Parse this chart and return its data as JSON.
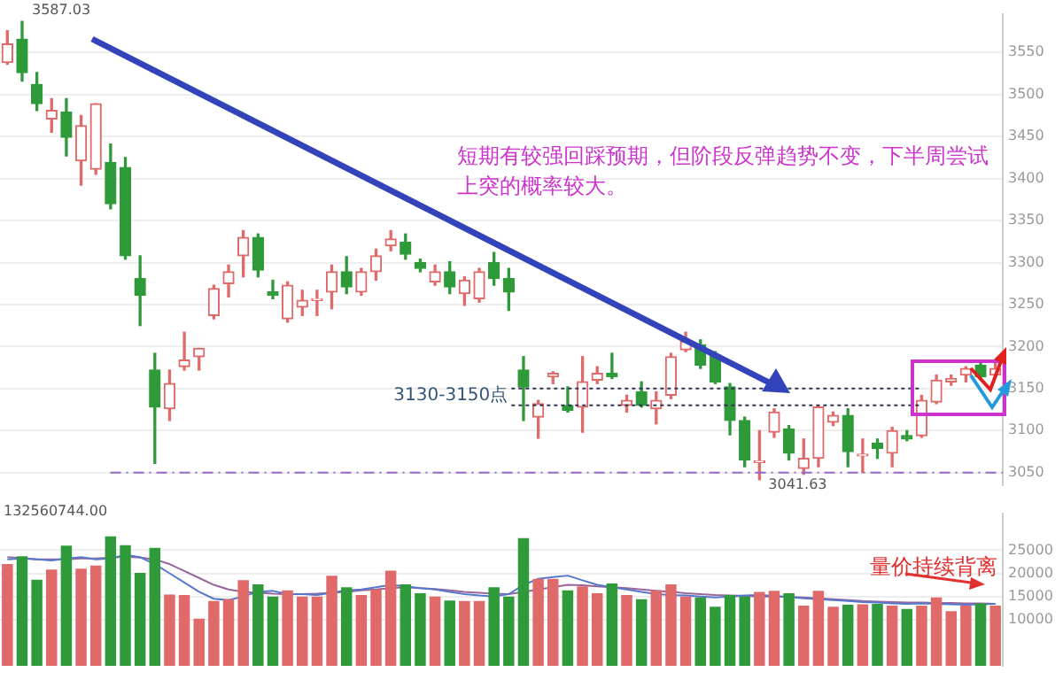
{
  "chart_data": [
    {
      "type": "candlestick",
      "categories": [
        null,
        null,
        null,
        null,
        null,
        null,
        null,
        null,
        null,
        null,
        null,
        null,
        null,
        null,
        null,
        null,
        null,
        null,
        null,
        null,
        null,
        null,
        null,
        null,
        null,
        null,
        null,
        null,
        null,
        null,
        null,
        null,
        null,
        null,
        null,
        null,
        null,
        null,
        null,
        null,
        null,
        null,
        null,
        null,
        null,
        null,
        null,
        null,
        null,
        null,
        null,
        null,
        null,
        null,
        null,
        null,
        null,
        null,
        null,
        null,
        null,
        null,
        null,
        null,
        null,
        null,
        null,
        null
      ],
      "ohlc": [
        [
          3538,
          3576,
          3536,
          3560
        ],
        [
          3566,
          3587.03,
          3516,
          3526
        ],
        [
          3512,
          3526,
          3481,
          3489
        ],
        [
          3471,
          3495,
          3455,
          3481
        ],
        [
          3479,
          3495,
          3427,
          3449
        ],
        [
          3421,
          3475,
          3392,
          3463
        ],
        [
          3411,
          3489,
          3405,
          3489
        ],
        [
          3419,
          3441,
          3364,
          3370
        ],
        [
          3413,
          3425,
          3304,
          3308
        ],
        [
          3281,
          3308,
          3225,
          3261
        ],
        [
          3172,
          3192,
          3061,
          3128
        ],
        [
          3126,
          3172,
          3112,
          3156
        ],
        [
          3176,
          3217,
          3172,
          3184
        ],
        [
          3188,
          3198,
          3172,
          3198
        ],
        [
          3237,
          3273,
          3233,
          3269
        ],
        [
          3275,
          3297,
          3259,
          3289
        ],
        [
          3308,
          3338,
          3283,
          3330
        ],
        [
          3330,
          3334,
          3283,
          3291
        ],
        [
          3265,
          3279,
          3257,
          3261
        ],
        [
          3233,
          3277,
          3229,
          3273
        ],
        [
          3247,
          3267,
          3237,
          3255
        ],
        [
          3255,
          3267,
          3237,
          3257
        ],
        [
          3265,
          3297,
          3245,
          3289
        ],
        [
          3289,
          3307,
          3263,
          3271
        ],
        [
          3265,
          3293,
          3261,
          3289
        ],
        [
          3289,
          3316,
          3279,
          3308
        ],
        [
          3320,
          3338,
          3314,
          3328
        ],
        [
          3324,
          3334,
          3304,
          3310
        ],
        [
          3300,
          3304,
          3289,
          3293
        ],
        [
          3277,
          3297,
          3273,
          3289
        ],
        [
          3289,
          3301,
          3263,
          3271
        ],
        [
          3263,
          3283,
          3249,
          3279
        ],
        [
          3257,
          3293,
          3253,
          3289
        ],
        [
          3300,
          3312,
          3273,
          3281
        ],
        [
          3281,
          3293,
          3243,
          3265
        ],
        [
          3172,
          3188,
          3112,
          3152
        ],
        [
          3116,
          3136,
          3091,
          3132
        ],
        [
          3164,
          3170,
          3156,
          3168
        ],
        [
          3130,
          3152,
          3122,
          3124
        ],
        [
          3128,
          3188,
          3098,
          3158
        ],
        [
          3160,
          3176,
          3156,
          3168
        ],
        [
          3168,
          3192,
          3162,
          3164
        ],
        [
          3130,
          3142,
          3122,
          3136
        ],
        [
          3146,
          3158,
          3128,
          3130
        ],
        [
          3126,
          3146,
          3108,
          3136
        ],
        [
          3142,
          3192,
          3138,
          3188
        ],
        [
          3196,
          3217,
          3194,
          3206
        ],
        [
          3202,
          3208,
          3174,
          3178
        ],
        [
          3190,
          3194,
          3156,
          3158
        ],
        [
          3152,
          3156,
          3095,
          3112
        ],
        [
          3112,
          3116,
          3057,
          3065
        ],
        [
          3062,
          3100,
          3041.63,
          3064
        ],
        [
          3098,
          3126,
          3092,
          3122
        ],
        [
          3102,
          3106,
          3065,
          3073
        ],
        [
          3055,
          3090,
          3048,
          3067
        ],
        [
          3067,
          3130,
          3057,
          3128
        ],
        [
          3110,
          3122,
          3106,
          3118
        ],
        [
          3118,
          3126,
          3057,
          3075
        ],
        [
          3070,
          3090,
          3050,
          3072
        ],
        [
          3085,
          3090,
          3067,
          3079
        ],
        [
          3073,
          3104,
          3057,
          3100
        ],
        [
          3094,
          3100,
          3088,
          3090
        ],
        [
          3094,
          3142,
          3092,
          3136
        ],
        [
          3134,
          3166,
          3132,
          3160
        ],
        [
          3158,
          3166,
          3154,
          3162
        ],
        [
          3166,
          3176,
          3158,
          3174
        ],
        [
          3178,
          3180,
          3162,
          3164
        ],
        [
          3166,
          3180,
          3164,
          3174
        ]
      ],
      "colors": [
        "#e06a6a",
        "#2f9a3a",
        "#2f9a3a",
        "#e06a6a",
        "#2f9a3a",
        "#e06a6a",
        "#e06a6a",
        "#2f9a3a",
        "#2f9a3a",
        "#2f9a3a",
        "#2f9a3a",
        "#e06a6a",
        "#e06a6a",
        "#e06a6a",
        "#e06a6a",
        "#e06a6a",
        "#e06a6a",
        "#2f9a3a",
        "#2f9a3a",
        "#e06a6a",
        "#e06a6a",
        "#e06a6a",
        "#e06a6a",
        "#2f9a3a",
        "#e06a6a",
        "#e06a6a",
        "#e06a6a",
        "#2f9a3a",
        "#2f9a3a",
        "#e06a6a",
        "#2f9a3a",
        "#e06a6a",
        "#e06a6a",
        "#2f9a3a",
        "#2f9a3a",
        "#2f9a3a",
        "#e06a6a",
        "#e06a6a",
        "#2f9a3a",
        "#e06a6a",
        "#e06a6a",
        "#2f9a3a",
        "#e06a6a",
        "#2f9a3a",
        "#e06a6a",
        "#e06a6a",
        "#e06a6a",
        "#2f9a3a",
        "#2f9a3a",
        "#2f9a3a",
        "#2f9a3a",
        "#e06a6a",
        "#e06a6a",
        "#2f9a3a",
        "#e06a6a",
        "#e06a6a",
        "#e06a6a",
        "#2f9a3a",
        "#e06a6a",
        "#2f9a3a",
        "#e06a6a",
        "#2f9a3a",
        "#e06a6a",
        "#e06a6a",
        "#e06a6a",
        "#e06a6a",
        "#2f9a3a",
        "#e06a6a"
      ],
      "ylim": [
        3035,
        3596
      ],
      "yticks": [
        3050,
        3100,
        3150,
        3200,
        3250,
        3300,
        3350,
        3400,
        3450,
        3500,
        3550
      ],
      "grid": "y",
      "ref_lines": [
        {
          "axis": "y",
          "value": 3150,
          "label": "3130-3150点",
          "color": "#333355",
          "line_style": "dotted"
        },
        {
          "axis": "y",
          "value": 3130,
          "color": "#333355",
          "line_style": "dotted"
        },
        {
          "axis": "y",
          "value": 3050,
          "color": "#9966cc",
          "line_style": "dashed"
        }
      ],
      "annotations": [
        "3587.03",
        {
          "text": "3041.63",
          "y": 3041.63
        },
        "短期有较强回踩预期，但阶段反弹趋势不变，下半周尝试上突的概率较大。"
      ]
    },
    {
      "type": "bar",
      "categories": [
        null,
        null,
        null,
        null,
        null,
        null,
        null,
        null,
        null,
        null,
        null,
        null,
        null,
        null,
        null,
        null,
        null,
        null,
        null,
        null,
        null,
        null,
        null,
        null,
        null,
        null,
        null,
        null,
        null,
        null,
        null,
        null,
        null,
        null,
        null,
        null,
        null,
        null,
        null,
        null,
        null,
        null,
        null,
        null,
        null,
        null,
        null,
        null,
        null,
        null,
        null,
        null,
        null,
        null,
        null,
        null,
        null,
        null,
        null,
        null,
        null,
        null,
        null,
        null,
        null,
        null,
        null,
        null
      ],
      "series": [
        {
          "type": "bar",
          "colors": [
            "#e06a6a",
            "#2f9a3a",
            "#2f9a3a",
            "#e06a6a",
            "#2f9a3a",
            "#e06a6a",
            "#e06a6a",
            "#2f9a3a",
            "#2f9a3a",
            "#2f9a3a",
            "#2f9a3a",
            "#e06a6a",
            "#e06a6a",
            "#e06a6a",
            "#e06a6a",
            "#e06a6a",
            "#e06a6a",
            "#2f9a3a",
            "#2f9a3a",
            "#e06a6a",
            "#e06a6a",
            "#e06a6a",
            "#e06a6a",
            "#2f9a3a",
            "#e06a6a",
            "#e06a6a",
            "#e06a6a",
            "#2f9a3a",
            "#2f9a3a",
            "#e06a6a",
            "#2f9a3a",
            "#e06a6a",
            "#e06a6a",
            "#2f9a3a",
            "#2f9a3a",
            "#2f9a3a",
            "#e06a6a",
            "#e06a6a",
            "#2f9a3a",
            "#e06a6a",
            "#e06a6a",
            "#2f9a3a",
            "#e06a6a",
            "#2f9a3a",
            "#e06a6a",
            "#e06a6a",
            "#e06a6a",
            "#2f9a3a",
            "#2f9a3a",
            "#2f9a3a",
            "#2f9a3a",
            "#e06a6a",
            "#e06a6a",
            "#2f9a3a",
            "#e06a6a",
            "#e06a6a",
            "#e06a6a",
            "#2f9a3a",
            "#e06a6a",
            "#2f9a3a",
            "#e06a6a",
            "#2f9a3a",
            "#e06a6a",
            "#e06a6a",
            "#e06a6a",
            "#e06a6a",
            "#2f9a3a",
            "#e06a6a"
          ],
          "values": [
            22000,
            23700,
            18600,
            20800,
            26000,
            21000,
            21700,
            28000,
            26100,
            20100,
            25500,
            15400,
            15300,
            10200,
            14000,
            14400,
            18500,
            17600,
            15000,
            16300,
            15000,
            15000,
            19500,
            17000,
            15300,
            16500,
            20600,
            17600,
            15700,
            15000,
            14100,
            14000,
            14000,
            17000,
            15000,
            27600,
            18800,
            18800,
            16300,
            17200,
            15700,
            17800,
            15300,
            14400,
            16300,
            17600,
            15000,
            14800,
            12800,
            15300,
            15000,
            16000,
            16200,
            15700,
            13000,
            16200,
            12800,
            13200,
            13300,
            13400,
            13000,
            12300,
            13000,
            14800,
            11800,
            13000,
            13500,
            13000
          ]
        },
        {
          "type": "line",
          "color": "#5577cc",
          "values": [
            23000,
            23200,
            23000,
            22800,
            23200,
            23500,
            23000,
            23200,
            24000,
            23500,
            22000,
            20000,
            18000,
            16000,
            14500,
            14200,
            15000,
            16000,
            16200,
            15500,
            15500,
            15300,
            15800,
            16300,
            16500,
            17000,
            17500,
            17200,
            16800,
            16500,
            16000,
            15500,
            15200,
            15000,
            15500,
            17500,
            18800,
            19200,
            19500,
            18500,
            17500,
            17000,
            16500,
            16000,
            15500,
            15300,
            15200,
            15000,
            14800,
            15000,
            15200,
            15300,
            15100,
            14900,
            14600,
            14400,
            14200,
            14000,
            13800,
            13700,
            13500,
            13400,
            13500,
            13400,
            13300,
            13200,
            13300,
            13400
          ]
        },
        {
          "type": "line",
          "color": "#996699",
          "values": [
            23500,
            23300,
            23000,
            23000,
            23000,
            23200,
            23200,
            23400,
            23600,
            23400,
            23000,
            22000,
            20500,
            19000,
            17500,
            16500,
            16000,
            15800,
            15600,
            15500,
            15500,
            15600,
            15800,
            16000,
            16300,
            16500,
            16800,
            17000,
            16800,
            16600,
            16300,
            16000,
            15800,
            15600,
            15500,
            16000,
            16500,
            17000,
            17500,
            17400,
            17200,
            17000,
            16800,
            16500,
            16200,
            16000,
            15700,
            15500,
            15300,
            15200,
            15100,
            15000,
            15000,
            14900,
            14800,
            14600,
            14400,
            14200,
            14000,
            13900,
            13800,
            13700,
            13700,
            13600,
            13600,
            13500,
            13500,
            13400
          ]
        }
      ],
      "ylim": [
        0,
        33000
      ],
      "yticks": [
        10000,
        15000,
        20000,
        25000
      ],
      "grid": "y",
      "annotations": [
        "132560744.00",
        "量价持续背离"
      ]
    }
  ]
}
